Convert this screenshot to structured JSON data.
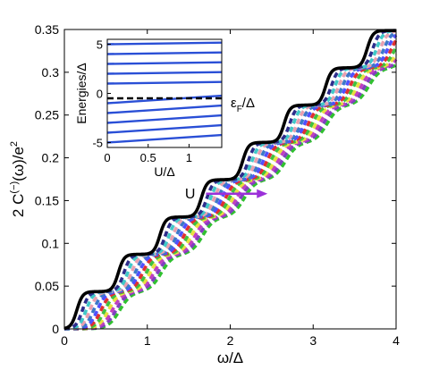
{
  "chart_data": [
    {
      "type": "line",
      "role": "main",
      "xlabel": "ω/Δ",
      "ylabel": "2 C(−)(ω)/e2",
      "ylabel_parts": {
        "base": "2 C",
        "sup1": "(−)",
        "mid": "(ω)/e",
        "sup2": "2"
      },
      "xlim": [
        0,
        4
      ],
      "ylim": [
        0,
        0.35
      ],
      "xticks": [
        "0",
        "1",
        "2",
        "3",
        "4"
      ],
      "yticks": [
        "0",
        "0.05",
        "0.1",
        "0.15",
        "0.2",
        "0.25",
        "0.3",
        "0.35"
      ],
      "grid": false,
      "steps": {
        "count": 8,
        "height": 0.0436,
        "first_step_center_at_U0": 0.15,
        "spacing": 0.5
      },
      "series_colors": [
        "#000000",
        "#2e2e8c",
        "#40c8c8",
        "#e8a0b0",
        "#3c78c8",
        "#5050ff",
        "#e03030",
        "#40c040",
        "#e8e040",
        "#c040c0",
        "#8040c0",
        "#30c030"
      ],
      "series_U": [
        0,
        0.15,
        0.25,
        0.35,
        0.45,
        0.55,
        0.65,
        0.75,
        0.85,
        0.95,
        1.05,
        1.15
      ],
      "annotation": {
        "label": "U",
        "color": "#9b30d9",
        "from": [
          1.6,
          0.158
        ],
        "to": [
          2.45,
          0.158
        ]
      }
    },
    {
      "type": "line",
      "role": "inset",
      "xlabel": "U/Δ",
      "ylabel": "Energies/Δ",
      "xlim": [
        0,
        1.4
      ],
      "ylim": [
        -5.5,
        5.5
      ],
      "xticks": [
        "0",
        "0.5",
        "1"
      ],
      "yticks": [
        "-5",
        "0",
        "5"
      ],
      "levels_start": [
        -5,
        -4,
        -3,
        -2,
        -1,
        1,
        2,
        3,
        4,
        5
      ],
      "slope_negative": 0.55,
      "slope_positive": 0.12,
      "fermi_level": -0.5,
      "fermi_label": "εF/Δ",
      "fermi_label_parts": {
        "base": "ε",
        "sub": "F",
        "rest": "/Δ"
      },
      "line_color": "#2a4fd6"
    }
  ]
}
